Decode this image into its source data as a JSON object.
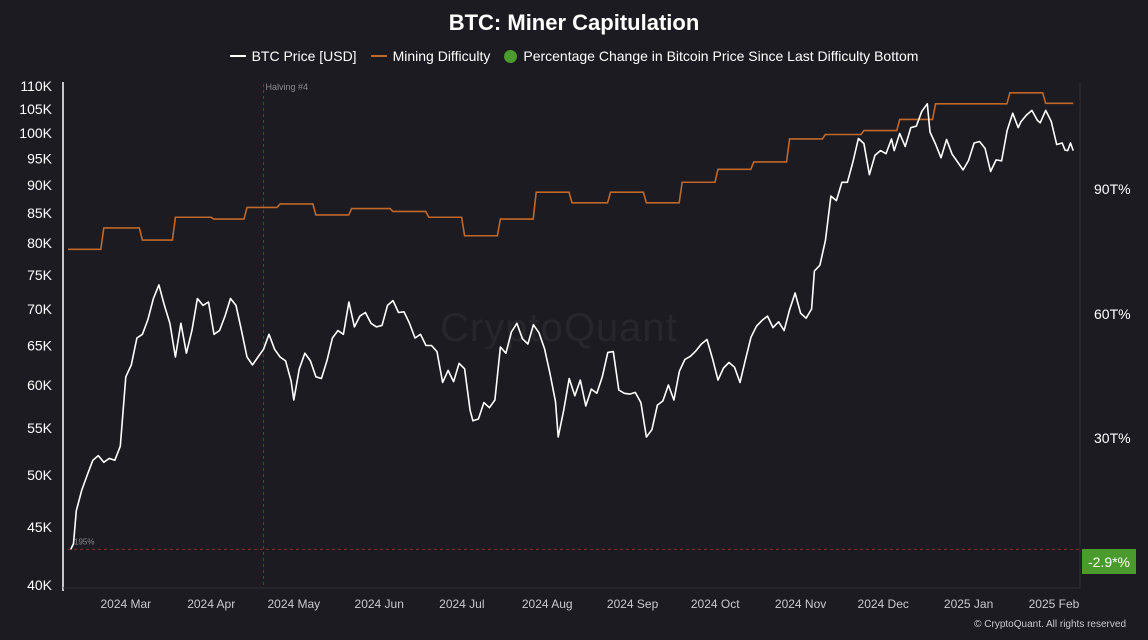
{
  "chart_data": {
    "type": "line",
    "title": "BTC: Miner Capitulation",
    "legend": [
      {
        "name": "BTC Price [USD]",
        "color": "#ffffff",
        "marker": "line"
      },
      {
        "name": "Mining Difficulty",
        "color": "#c0672a",
        "marker": "line"
      },
      {
        "name": "Percentage Change in Bitcoin Price Since Last Difficulty Bottom",
        "color": "#4a9a2e",
        "marker": "dot"
      }
    ],
    "legend_position": "top-center",
    "grid": false,
    "y_left": {
      "scale": "log",
      "range": [
        40000,
        110000
      ],
      "ticks": [
        40000,
        45000,
        50000,
        55000,
        60000,
        65000,
        70000,
        75000,
        80000,
        85000,
        90000,
        95000,
        100000,
        105000,
        110000
      ],
      "tick_labels": [
        "40K",
        "45K",
        "50K",
        "55K",
        "60K",
        "65K",
        "70K",
        "75K",
        "80K",
        "85K",
        "90K",
        "95K",
        "100K",
        "105K",
        "110K"
      ]
    },
    "y_right": {
      "ticks": [
        30,
        60,
        90
      ],
      "tick_labels": [
        "30T%",
        "60T%",
        "90T%"
      ]
    },
    "x_axis": {
      "range": [
        "2024-02-09",
        "2025-02-09"
      ],
      "tick_dates": [
        "2024-03-01",
        "2024-04-01",
        "2024-05-01",
        "2024-06-01",
        "2024-07-01",
        "2024-08-01",
        "2024-09-01",
        "2024-10-01",
        "2024-11-01",
        "2024-12-01",
        "2025-01-01",
        "2025-02-01"
      ],
      "tick_labels": [
        "2024 Mar",
        "2024 Apr",
        "2024 May",
        "2024 Jun",
        "2024 Jul",
        "2024 Aug",
        "2024 Sep",
        "2024 Oct",
        "2024 Nov",
        "2024 Dec",
        "2025 Jan",
        "2025 Feb"
      ]
    },
    "annotations": {
      "halving": {
        "label": "Halving #4",
        "date": "2024-04-20"
      },
      "bottom_line": {
        "label": "195%",
        "price": 43000
      },
      "current_value_badge": "-2.9*%"
    },
    "series": [
      {
        "name": "BTC Price [USD]",
        "color": "#ffffff",
        "points": [
          [
            "2024-02-10",
            43000
          ],
          [
            "2024-02-11",
            43500
          ],
          [
            "2024-02-12",
            46500
          ],
          [
            "2024-02-14",
            48500
          ],
          [
            "2024-02-16",
            50000
          ],
          [
            "2024-02-18",
            51500
          ],
          [
            "2024-02-20",
            52000
          ],
          [
            "2024-02-22",
            51300
          ],
          [
            "2024-02-24",
            51700
          ],
          [
            "2024-02-26",
            51500
          ],
          [
            "2024-02-28",
            53000
          ],
          [
            "2024-03-01",
            61000
          ],
          [
            "2024-03-03",
            62500
          ],
          [
            "2024-03-05",
            66000
          ],
          [
            "2024-03-07",
            66500
          ],
          [
            "2024-03-09",
            68500
          ],
          [
            "2024-03-11",
            71500
          ],
          [
            "2024-03-13",
            73500
          ],
          [
            "2024-03-15",
            70500
          ],
          [
            "2024-03-17",
            68000
          ],
          [
            "2024-03-19",
            63500
          ],
          [
            "2024-03-21",
            68000
          ],
          [
            "2024-03-23",
            64000
          ],
          [
            "2024-03-25",
            67000
          ],
          [
            "2024-03-27",
            71500
          ],
          [
            "2024-03-29",
            70500
          ],
          [
            "2024-03-31",
            71000
          ],
          [
            "2024-04-02",
            66500
          ],
          [
            "2024-04-04",
            67000
          ],
          [
            "2024-04-06",
            69000
          ],
          [
            "2024-04-08",
            71500
          ],
          [
            "2024-04-10",
            70500
          ],
          [
            "2024-04-12",
            67000
          ],
          [
            "2024-04-14",
            63500
          ],
          [
            "2024-04-16",
            62500
          ],
          [
            "2024-04-18",
            63500
          ],
          [
            "2024-04-20",
            64500
          ],
          [
            "2024-04-22",
            66500
          ],
          [
            "2024-04-24",
            64500
          ],
          [
            "2024-04-26",
            63500
          ],
          [
            "2024-04-28",
            63000
          ],
          [
            "2024-04-30",
            60500
          ],
          [
            "2024-05-01",
            58200
          ],
          [
            "2024-05-03",
            62000
          ],
          [
            "2024-05-05",
            64000
          ],
          [
            "2024-05-07",
            63000
          ],
          [
            "2024-05-09",
            61000
          ],
          [
            "2024-05-11",
            60800
          ],
          [
            "2024-05-13",
            63000
          ],
          [
            "2024-05-15",
            66000
          ],
          [
            "2024-05-17",
            67000
          ],
          [
            "2024-05-19",
            66500
          ],
          [
            "2024-05-21",
            71000
          ],
          [
            "2024-05-23",
            67500
          ],
          [
            "2024-05-25",
            69000
          ],
          [
            "2024-05-27",
            69500
          ],
          [
            "2024-05-29",
            68000
          ],
          [
            "2024-05-31",
            67500
          ],
          [
            "2024-06-02",
            67700
          ],
          [
            "2024-06-04",
            70500
          ],
          [
            "2024-06-06",
            71200
          ],
          [
            "2024-06-08",
            69500
          ],
          [
            "2024-06-10",
            69600
          ],
          [
            "2024-06-12",
            68000
          ],
          [
            "2024-06-14",
            66000
          ],
          [
            "2024-06-16",
            66500
          ],
          [
            "2024-06-18",
            65000
          ],
          [
            "2024-06-20",
            65000
          ],
          [
            "2024-06-22",
            64200
          ],
          [
            "2024-06-24",
            60300
          ],
          [
            "2024-06-26",
            61800
          ],
          [
            "2024-06-28",
            60400
          ],
          [
            "2024-06-30",
            62700
          ],
          [
            "2024-07-02",
            62000
          ],
          [
            "2024-07-04",
            57000
          ],
          [
            "2024-07-05",
            55800
          ],
          [
            "2024-07-07",
            56000
          ],
          [
            "2024-07-09",
            57900
          ],
          [
            "2024-07-11",
            57300
          ],
          [
            "2024-07-13",
            58200
          ],
          [
            "2024-07-15",
            64800
          ],
          [
            "2024-07-17",
            64000
          ],
          [
            "2024-07-19",
            66800
          ],
          [
            "2024-07-21",
            68000
          ],
          [
            "2024-07-23",
            65900
          ],
          [
            "2024-07-25",
            65200
          ],
          [
            "2024-07-27",
            67800
          ],
          [
            "2024-07-29",
            66700
          ],
          [
            "2024-07-31",
            64600
          ],
          [
            "2024-08-02",
            61400
          ],
          [
            "2024-08-04",
            58000
          ],
          [
            "2024-08-05",
            54000
          ],
          [
            "2024-08-07",
            57000
          ],
          [
            "2024-08-09",
            60800
          ],
          [
            "2024-08-11",
            58700
          ],
          [
            "2024-08-13",
            60600
          ],
          [
            "2024-08-15",
            57500
          ],
          [
            "2024-08-17",
            59500
          ],
          [
            "2024-08-19",
            59000
          ],
          [
            "2024-08-21",
            61000
          ],
          [
            "2024-08-23",
            64100
          ],
          [
            "2024-08-25",
            64200
          ],
          [
            "2024-08-27",
            59400
          ],
          [
            "2024-08-29",
            59000
          ],
          [
            "2024-08-31",
            58900
          ],
          [
            "2024-09-02",
            59100
          ],
          [
            "2024-09-04",
            57900
          ],
          [
            "2024-09-06",
            54000
          ],
          [
            "2024-09-08",
            54800
          ],
          [
            "2024-09-10",
            57600
          ],
          [
            "2024-09-12",
            58100
          ],
          [
            "2024-09-14",
            60000
          ],
          [
            "2024-09-16",
            58200
          ],
          [
            "2024-09-18",
            61700
          ],
          [
            "2024-09-20",
            63200
          ],
          [
            "2024-09-22",
            63600
          ],
          [
            "2024-09-24",
            64300
          ],
          [
            "2024-09-26",
            65200
          ],
          [
            "2024-09-28",
            65800
          ],
          [
            "2024-09-30",
            63300
          ],
          [
            "2024-10-02",
            60600
          ],
          [
            "2024-10-04",
            62100
          ],
          [
            "2024-10-06",
            62800
          ],
          [
            "2024-10-08",
            62200
          ],
          [
            "2024-10-10",
            60300
          ],
          [
            "2024-10-12",
            63200
          ],
          [
            "2024-10-14",
            66100
          ],
          [
            "2024-10-16",
            67600
          ],
          [
            "2024-10-18",
            68400
          ],
          [
            "2024-10-20",
            69000
          ],
          [
            "2024-10-22",
            67400
          ],
          [
            "2024-10-24",
            68200
          ],
          [
            "2024-10-26",
            67000
          ],
          [
            "2024-10-28",
            69900
          ],
          [
            "2024-10-30",
            72300
          ],
          [
            "2024-11-01",
            69400
          ],
          [
            "2024-11-03",
            68700
          ],
          [
            "2024-11-05",
            70000
          ],
          [
            "2024-11-06",
            75600
          ],
          [
            "2024-11-08",
            76500
          ],
          [
            "2024-11-10",
            80400
          ],
          [
            "2024-11-12",
            88000
          ],
          [
            "2024-11-14",
            87200
          ],
          [
            "2024-11-16",
            90500
          ],
          [
            "2024-11-18",
            90500
          ],
          [
            "2024-11-20",
            94300
          ],
          [
            "2024-11-22",
            98900
          ],
          [
            "2024-11-24",
            97900
          ],
          [
            "2024-11-26",
            91900
          ],
          [
            "2024-11-28",
            95600
          ],
          [
            "2024-11-30",
            96500
          ],
          [
            "2024-12-02",
            95900
          ],
          [
            "2024-12-04",
            98800
          ],
          [
            "2024-12-05",
            96500
          ],
          [
            "2024-12-07",
            99900
          ],
          [
            "2024-12-09",
            97300
          ],
          [
            "2024-12-11",
            101100
          ],
          [
            "2024-12-13",
            101400
          ],
          [
            "2024-12-15",
            104500
          ],
          [
            "2024-12-17",
            106100
          ],
          [
            "2024-12-18",
            100200
          ],
          [
            "2024-12-20",
            97800
          ],
          [
            "2024-12-22",
            95100
          ],
          [
            "2024-12-24",
            98700
          ],
          [
            "2024-12-26",
            95800
          ],
          [
            "2024-12-28",
            94300
          ],
          [
            "2024-12-30",
            92800
          ],
          [
            "2025-01-01",
            94600
          ],
          [
            "2025-01-03",
            98000
          ],
          [
            "2025-01-05",
            98300
          ],
          [
            "2025-01-07",
            96900
          ],
          [
            "2025-01-09",
            92500
          ],
          [
            "2025-01-11",
            94700
          ],
          [
            "2025-01-13",
            94500
          ],
          [
            "2025-01-15",
            100500
          ],
          [
            "2025-01-17",
            104100
          ],
          [
            "2025-01-19",
            101100
          ],
          [
            "2025-01-20",
            102300
          ],
          [
            "2025-01-22",
            103700
          ],
          [
            "2025-01-24",
            104700
          ],
          [
            "2025-01-26",
            102600
          ],
          [
            "2025-01-27",
            102100
          ],
          [
            "2025-01-29",
            104700
          ],
          [
            "2025-01-31",
            102400
          ],
          [
            "2025-02-02",
            97700
          ],
          [
            "2025-02-04",
            98000
          ],
          [
            "2025-02-05",
            96600
          ],
          [
            "2025-02-06",
            96500
          ],
          [
            "2025-02-07",
            98000
          ],
          [
            "2025-02-08",
            96500
          ]
        ]
      },
      {
        "name": "Mining Difficulty",
        "color": "#c0672a",
        "plotted_on": "price axis",
        "steps": [
          [
            "2024-02-09",
            79000
          ],
          [
            "2024-02-22",
            82500
          ],
          [
            "2024-03-07",
            80500
          ],
          [
            "2024-03-19",
            84300
          ],
          [
            "2024-04-02",
            84000
          ],
          [
            "2024-04-14",
            86000
          ],
          [
            "2024-04-26",
            86600
          ],
          [
            "2024-05-09",
            84700
          ],
          [
            "2024-05-22",
            85800
          ],
          [
            "2024-06-06",
            85300
          ],
          [
            "2024-06-19",
            84300
          ],
          [
            "2024-07-02",
            81200
          ],
          [
            "2024-07-15",
            84000
          ],
          [
            "2024-07-28",
            88700
          ],
          [
            "2024-08-10",
            86800
          ],
          [
            "2024-08-24",
            88700
          ],
          [
            "2024-09-06",
            86800
          ],
          [
            "2024-09-19",
            90500
          ],
          [
            "2024-10-02",
            92900
          ],
          [
            "2024-10-15",
            94300
          ],
          [
            "2024-10-28",
            98800
          ],
          [
            "2024-11-10",
            99700
          ],
          [
            "2024-11-24",
            100500
          ],
          [
            "2024-12-07",
            102800
          ],
          [
            "2024-12-20",
            106100
          ],
          [
            "2025-01-02",
            106100
          ],
          [
            "2025-01-16",
            108500
          ],
          [
            "2025-01-29",
            106200
          ]
        ]
      }
    ]
  },
  "footer": "© CryptoQuant. All rights reserved",
  "watermark": "CryptoQuant"
}
